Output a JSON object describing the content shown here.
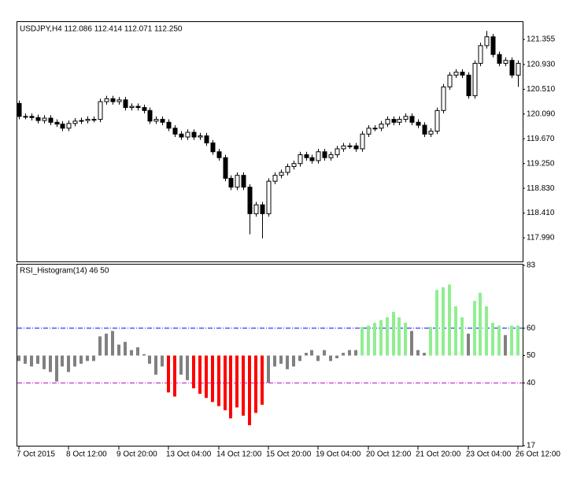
{
  "chart_data": [
    {
      "type": "candlestick",
      "title": "USDJPY,H4  112.086 112.414 112.071 112.250",
      "open": [
        120.27,
        120.05,
        120.05,
        120.03,
        119.98,
        120.02,
        119.95,
        119.92,
        119.85,
        119.93,
        119.97,
        119.98,
        120.0,
        120.0,
        120.3,
        120.35,
        120.3,
        120.33,
        120.2,
        120.22,
        120.2,
        120.15,
        119.97,
        120.0,
        119.95,
        119.85,
        119.75,
        119.7,
        119.78,
        119.7,
        119.72,
        119.6,
        119.45,
        119.35,
        119.0,
        118.85,
        119.05,
        118.85,
        118.4,
        118.55,
        118.4,
        118.95,
        119.05,
        119.1,
        119.2,
        119.25,
        119.4,
        119.35,
        119.3,
        119.45,
        119.35,
        119.4,
        119.5,
        119.55,
        119.55,
        119.5,
        119.75,
        119.85,
        119.85,
        119.92,
        120.0,
        119.95,
        120.0,
        120.05,
        119.95,
        119.9,
        119.75,
        119.8,
        120.15,
        120.55,
        120.75,
        120.8,
        120.75,
        120.4,
        120.95,
        121.25,
        121.4,
        121.1,
        120.95,
        121.0,
        120.75
      ],
      "high": [
        120.32,
        120.1,
        120.1,
        120.08,
        120.07,
        120.07,
        120.0,
        119.97,
        119.98,
        120.02,
        120.03,
        120.05,
        120.05,
        120.35,
        120.4,
        120.4,
        120.38,
        120.38,
        120.27,
        120.27,
        120.25,
        120.2,
        120.05,
        120.05,
        120.0,
        119.9,
        119.8,
        119.83,
        119.83,
        119.77,
        119.77,
        119.65,
        119.5,
        119.4,
        119.05,
        119.1,
        119.1,
        118.9,
        118.6,
        118.6,
        119.0,
        119.1,
        119.15,
        119.25,
        119.3,
        119.45,
        119.45,
        119.4,
        119.5,
        119.5,
        119.45,
        119.55,
        119.6,
        119.6,
        119.6,
        119.8,
        119.9,
        119.9,
        119.97,
        120.05,
        120.05,
        120.05,
        120.1,
        120.1,
        120.0,
        119.95,
        119.85,
        120.2,
        120.6,
        120.8,
        120.85,
        120.85,
        120.8,
        121.0,
        121.3,
        121.5,
        121.45,
        121.15,
        121.05,
        121.05,
        121.0
      ],
      "low": [
        120.0,
        120.0,
        119.98,
        119.93,
        119.93,
        119.9,
        119.87,
        119.8,
        119.8,
        119.88,
        119.92,
        119.93,
        119.95,
        119.95,
        120.25,
        120.25,
        120.25,
        120.15,
        120.15,
        120.15,
        120.1,
        119.92,
        119.92,
        119.9,
        119.8,
        119.7,
        119.65,
        119.65,
        119.65,
        119.65,
        119.55,
        119.4,
        119.3,
        118.95,
        118.8,
        118.8,
        118.8,
        118.05,
        118.35,
        117.98,
        118.35,
        118.9,
        119.0,
        119.05,
        119.15,
        119.2,
        119.3,
        119.25,
        119.25,
        119.3,
        119.3,
        119.35,
        119.45,
        119.5,
        119.45,
        119.45,
        119.7,
        119.8,
        119.8,
        119.87,
        119.9,
        119.9,
        119.95,
        119.9,
        119.85,
        119.7,
        119.7,
        119.75,
        120.1,
        120.5,
        120.7,
        120.7,
        120.35,
        120.35,
        120.9,
        121.2,
        121.05,
        120.9,
        120.9,
        120.7,
        120.55
      ],
      "close": [
        120.05,
        120.05,
        120.03,
        119.98,
        120.02,
        119.95,
        119.92,
        119.85,
        119.93,
        119.97,
        119.98,
        120.0,
        120.0,
        120.3,
        120.35,
        120.3,
        120.33,
        120.2,
        120.22,
        120.2,
        120.15,
        119.97,
        120.0,
        119.95,
        119.85,
        119.75,
        119.7,
        119.78,
        119.7,
        119.72,
        119.6,
        119.45,
        119.35,
        119.0,
        118.85,
        119.05,
        118.85,
        118.4,
        118.55,
        118.4,
        118.95,
        119.05,
        119.1,
        119.2,
        119.25,
        119.4,
        119.35,
        119.3,
        119.45,
        119.35,
        119.4,
        119.5,
        119.55,
        119.55,
        119.5,
        119.75,
        119.85,
        119.85,
        119.92,
        120.0,
        119.95,
        120.0,
        120.05,
        119.95,
        119.9,
        119.75,
        119.8,
        120.15,
        120.55,
        120.75,
        120.8,
        120.75,
        120.4,
        120.95,
        121.25,
        121.4,
        121.1,
        120.95,
        121.0,
        120.75,
        120.95
      ],
      "up_color": "#ffffff",
      "down_color": "#000000",
      "ylim": [
        117.59,
        121.65
      ],
      "yticks": [
        121.355,
        {
          "value": 120.93,
          "label": "120.930"
        },
        {
          "value": 120.51,
          "label": "120.510"
        },
        {
          "value": 120.09,
          "label": "120.090"
        },
        {
          "value": 119.67,
          "label": "119.670"
        },
        {
          "value": 119.25,
          "label": "119.250"
        },
        {
          "value": 118.83,
          "label": "118.830"
        },
        {
          "value": 118.41,
          "label": "118.410"
        },
        {
          "value": 117.99,
          "label": "117.990"
        }
      ]
    },
    {
      "type": "histogram",
      "title": "RSI_Histogram(14) 46 50",
      "categories": [
        "7 Oct 2015",
        null,
        null,
        null,
        null,
        null,
        null,
        null,
        "8 Oct 12:00",
        null,
        null,
        null,
        null,
        null,
        null,
        null,
        "9 Oct 20:00",
        null,
        null,
        null,
        null,
        null,
        null,
        null,
        "13 Oct 04:00",
        null,
        null,
        null,
        null,
        null,
        null,
        null,
        "14 Oct 12:00",
        null,
        null,
        null,
        null,
        null,
        null,
        null,
        "15 Oct 20:00",
        null,
        null,
        null,
        null,
        null,
        null,
        null,
        "19 Oct 04:00",
        null,
        null,
        null,
        null,
        null,
        null,
        null,
        "20 Oct 12:00",
        null,
        null,
        null,
        null,
        null,
        null,
        null,
        "21 Oct 20:00",
        null,
        null,
        null,
        null,
        null,
        null,
        null,
        "23 Oct 04:00",
        null,
        null,
        null,
        null,
        null,
        null,
        null,
        "26 Oct 12:00"
      ],
      "values": [
        48,
        47,
        46,
        47,
        45,
        44,
        40.5,
        46,
        44,
        46,
        47,
        48,
        48,
        57,
        58,
        59,
        54,
        55,
        52,
        53,
        50.5,
        47,
        43,
        46,
        36.5,
        35,
        43,
        41,
        38,
        36,
        34.5,
        33,
        31.5,
        30,
        27,
        31,
        28,
        24.5,
        29,
        32,
        40,
        46,
        47,
        45,
        46,
        48,
        51,
        52,
        48,
        52,
        48,
        49,
        51,
        52,
        52,
        60.5,
        61,
        62,
        63,
        64,
        66,
        64,
        62,
        59,
        52,
        51,
        60.5,
        74,
        75,
        76,
        68,
        64,
        58,
        70,
        73,
        68,
        62,
        61,
        57.5,
        61,
        61
      ],
      "base": 50,
      "up_color": "#90ee90",
      "down_color": "#ff0000",
      "neutral_color": "#808080",
      "levels": [
        {
          "value": 60,
          "color": "#0000ff"
        },
        {
          "value": 40,
          "color": "#c000c0"
        }
      ],
      "ylim": [
        17,
        83
      ],
      "yticks": [
        17,
        40,
        50,
        60,
        83
      ]
    }
  ]
}
